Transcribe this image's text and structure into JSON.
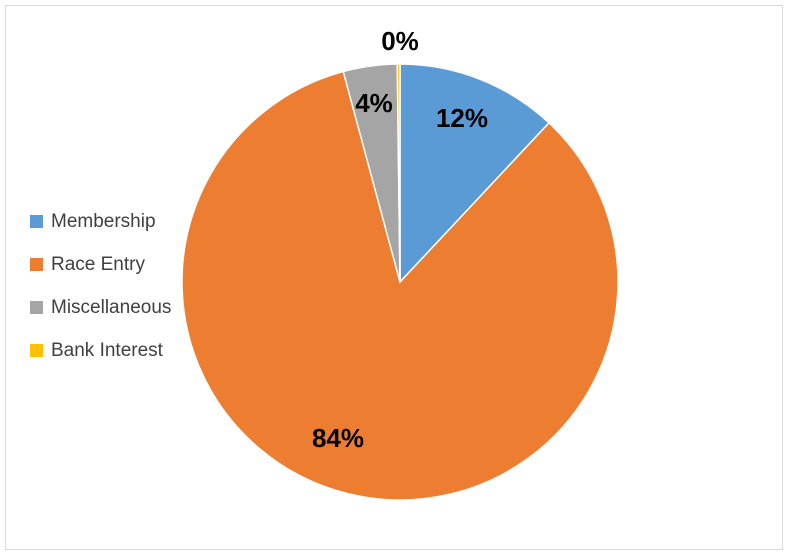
{
  "chart_data": {
    "type": "pie",
    "title": "",
    "categories": [
      "Membership",
      "Race Entry",
      "Miscellaneous",
      "Bank Interest"
    ],
    "values": [
      0.12,
      0.84,
      0.04,
      0.002
    ],
    "data_labels": [
      "12%",
      "84%",
      "4%",
      "0%"
    ],
    "colors": [
      "#5b9bd5",
      "#ed7d31",
      "#a5a5a5",
      "#ffc000"
    ],
    "legend_position": "left"
  }
}
